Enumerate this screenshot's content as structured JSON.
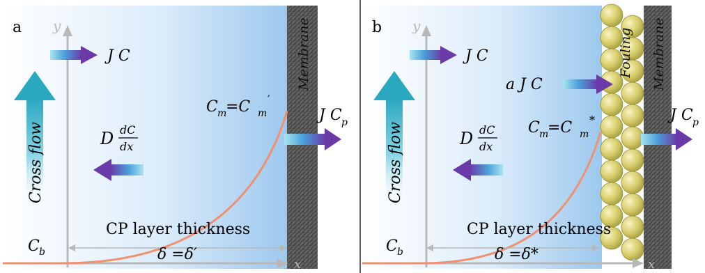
{
  "panel_a": {
    "label": "a",
    "axis_y": "y",
    "axis_x": "x",
    "cross_flow": "Cross flow",
    "flux": "J C",
    "diffusion_D": "D",
    "diffusion_num": "dC",
    "diffusion_den": "dx",
    "permeate_main": "J C",
    "permeate_sub": "p",
    "membrane": "Membrane",
    "cm_main": "C",
    "cm_sub": "m",
    "cm_eq": "=C",
    "cm_sub2": "m",
    "cm_sup": "′",
    "cb_main": "C",
    "cb_sub": "b",
    "cp_label": "CP layer thickness",
    "delta": "δ =δ′"
  },
  "panel_b": {
    "label": "b",
    "axis_y": "y",
    "axis_x": "x",
    "cross_flow": "Cross flow",
    "flux": "J C",
    "fouling_flux": "a J C",
    "diffusion_D": "D",
    "diffusion_num": "dC",
    "diffusion_den": "dx",
    "permeate_main": "J C",
    "permeate_sub": "p",
    "membrane": "Membrane",
    "fouling": "Fouling",
    "cm_main": "C",
    "cm_sub": "m",
    "cm_eq": "=C",
    "cm_sub2": "m",
    "cm_sup": "*",
    "cb_main": "C",
    "cb_sub": "b",
    "cp_label": "CP layer thickness",
    "delta": "δ =δ*"
  },
  "colors": {
    "curve": "#f09070",
    "membrane": "#5a5a5a",
    "fouling_ball": "#d8d070",
    "arrow_start": "#7fd0e8",
    "arrow_end": "#6a3aa8",
    "crossflow_top": "#2aa8c0"
  }
}
